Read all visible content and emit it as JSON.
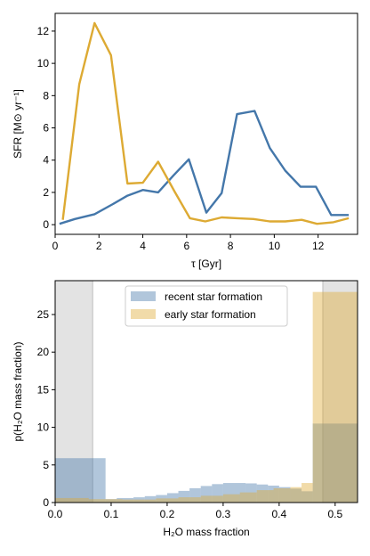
{
  "chart_data": [
    {
      "type": "line",
      "xlabel": "τ [Gyr]",
      "ylabel": "SFR [M⊙ yr⁻¹]",
      "xlim": [
        0,
        13.8
      ],
      "ylim": [
        -0.6,
        13.1
      ],
      "xticks": [
        0,
        2,
        4,
        6,
        8,
        10,
        12
      ],
      "yticks": [
        0,
        2,
        4,
        6,
        8,
        10,
        12
      ],
      "grid": false,
      "series": [
        {
          "color": "#4477aa",
          "x": [
            0.2,
            0.9,
            1.8,
            2.6,
            3.3,
            4.0,
            4.7,
            5.4,
            6.1,
            6.9,
            7.6,
            8.3,
            9.1,
            9.8,
            10.5,
            11.2,
            11.9,
            12.6,
            13.4
          ],
          "y": [
            0.05,
            0.35,
            0.65,
            1.25,
            1.8,
            2.15,
            2.0,
            3.05,
            4.05,
            0.75,
            1.95,
            6.85,
            7.05,
            4.75,
            3.35,
            2.35,
            2.35,
            0.6,
            0.6
          ]
        },
        {
          "color": "#ddaa33",
          "x": [
            0.35,
            1.1,
            1.8,
            2.55,
            3.3,
            4.0,
            4.7,
            5.45,
            6.15,
            6.85,
            7.6,
            8.3,
            9.05,
            9.8,
            10.5,
            11.25,
            11.95,
            12.7,
            13.4
          ],
          "y": [
            0.3,
            8.7,
            12.5,
            10.5,
            2.55,
            2.6,
            3.9,
            2.05,
            0.4,
            0.2,
            0.45,
            0.4,
            0.35,
            0.2,
            0.2,
            0.3,
            0.05,
            0.15,
            0.4
          ]
        }
      ]
    },
    {
      "type": "bar",
      "xlabel": "H₂O mass fraction",
      "ylabel": "p(H₂O mass fraction)",
      "xlim": [
        0.0,
        0.54
      ],
      "ylim": [
        0,
        29.5
      ],
      "xticks": [
        0.0,
        0.1,
        0.2,
        0.3,
        0.4,
        0.5
      ],
      "xtick_labels": [
        "0.0",
        "0.1",
        "0.2",
        "0.3",
        "0.4",
        "0.5"
      ],
      "yticks": [
        0,
        5,
        10,
        15,
        20,
        25
      ],
      "legend": {
        "position": "top-center",
        "entries": [
          "recent star formation",
          "early star formation"
        ]
      },
      "shaded_regions": [
        {
          "from": 0.0,
          "to": 0.067,
          "color": "#d9d9d9"
        },
        {
          "from": 0.478,
          "to": 0.54,
          "color": "#d9d9d9"
        }
      ],
      "series": [
        {
          "name": "recent star formation",
          "color": "#4477aa",
          "alpha": 0.42,
          "bins": [
            [
              0.0,
              0.09,
              5.9
            ],
            [
              0.09,
              0.11,
              0.45
            ],
            [
              0.11,
              0.14,
              0.6
            ],
            [
              0.14,
              0.16,
              0.7
            ],
            [
              0.16,
              0.18,
              0.85
            ],
            [
              0.18,
              0.2,
              1.0
            ],
            [
              0.2,
              0.22,
              1.25
            ],
            [
              0.22,
              0.24,
              1.55
            ],
            [
              0.24,
              0.26,
              1.9
            ],
            [
              0.26,
              0.28,
              2.2
            ],
            [
              0.28,
              0.3,
              2.45
            ],
            [
              0.3,
              0.32,
              2.6
            ],
            [
              0.32,
              0.34,
              2.6
            ],
            [
              0.34,
              0.36,
              2.55
            ],
            [
              0.36,
              0.38,
              2.4
            ],
            [
              0.38,
              0.4,
              2.25
            ],
            [
              0.4,
              0.42,
              2.05
            ],
            [
              0.42,
              0.44,
              1.85
            ],
            [
              0.44,
              0.46,
              1.5
            ],
            [
              0.46,
              0.54,
              10.5
            ]
          ]
        },
        {
          "name": "early star formation",
          "color": "#ddaa33",
          "alpha": 0.42,
          "bins": [
            [
              0.0,
              0.06,
              0.6
            ],
            [
              0.06,
              0.12,
              0.45
            ],
            [
              0.12,
              0.18,
              0.4
            ],
            [
              0.18,
              0.22,
              0.55
            ],
            [
              0.22,
              0.26,
              0.7
            ],
            [
              0.26,
              0.3,
              0.9
            ],
            [
              0.3,
              0.33,
              1.1
            ],
            [
              0.33,
              0.36,
              1.35
            ],
            [
              0.36,
              0.39,
              1.65
            ],
            [
              0.39,
              0.42,
              1.9
            ],
            [
              0.42,
              0.44,
              2.05
            ],
            [
              0.44,
              0.46,
              2.6
            ],
            [
              0.46,
              0.54,
              28.0
            ]
          ]
        }
      ]
    }
  ]
}
